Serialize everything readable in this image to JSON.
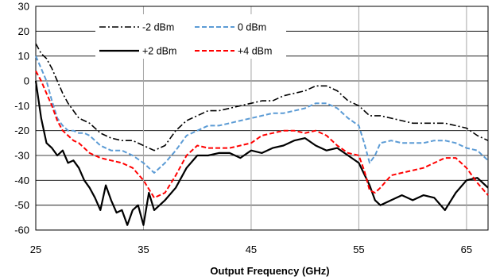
{
  "chart_data": {
    "type": "line",
    "title": "",
    "xlabel": "Output Frequency (GHz)",
    "ylabel": "",
    "xlim": [
      25,
      67
    ],
    "ylim": [
      -60,
      30
    ],
    "xticks": [
      25,
      35,
      45,
      55,
      65
    ],
    "yticks": [
      30,
      20,
      10,
      0,
      -10,
      -20,
      -30,
      -40,
      -50,
      -60
    ],
    "grid": true,
    "legend_position": "top",
    "series": [
      {
        "name": "-2 dBm",
        "color": "#000000",
        "dash": "dash-dot",
        "x": [
          25,
          25.5,
          26,
          26.5,
          27,
          27.5,
          28,
          28.5,
          29,
          29.5,
          30,
          31,
          32,
          33,
          34,
          35,
          36,
          37,
          38,
          39,
          40,
          41,
          42,
          43,
          44,
          45,
          46,
          47,
          48,
          49,
          50,
          51,
          52,
          53,
          54,
          55,
          56,
          57,
          58,
          59,
          60,
          61,
          62,
          63,
          64,
          65,
          66,
          67
        ],
        "y": [
          15,
          11,
          9,
          5,
          0,
          -5,
          -9,
          -12,
          -15,
          -16,
          -17,
          -21,
          -23,
          -24,
          -24,
          -26,
          -28,
          -26,
          -20,
          -16,
          -14,
          -12,
          -12,
          -11,
          -10,
          -9,
          -8,
          -8,
          -6,
          -5,
          -4,
          -2,
          -2,
          -4,
          -8,
          -10,
          -14,
          -14,
          -15,
          -16,
          -17,
          -17,
          -17,
          -17,
          -18,
          -19,
          -22,
          -24
        ]
      },
      {
        "name": "0 dBm",
        "color": "#5b9bd5",
        "dash": "dash",
        "x": [
          25,
          25.5,
          26,
          26.5,
          27,
          27.5,
          28,
          28.5,
          29,
          29.5,
          30,
          31,
          32,
          33,
          34,
          35,
          36,
          37,
          38,
          39,
          40,
          41,
          42,
          43,
          44,
          45,
          46,
          47,
          48,
          49,
          50,
          51,
          52,
          53,
          54,
          55,
          55.5,
          56,
          56.5,
          57,
          58,
          59,
          60,
          61,
          62,
          63,
          64,
          65,
          66,
          67
        ],
        "y": [
          10,
          5,
          0,
          -8,
          -15,
          -18,
          -20,
          -20,
          -21,
          -21,
          -22,
          -26,
          -28,
          -28,
          -30,
          -33,
          -37,
          -33,
          -28,
          -22,
          -20,
          -18,
          -18,
          -17,
          -16,
          -15,
          -14,
          -13,
          -13,
          -12,
          -11,
          -9,
          -9,
          -11,
          -15,
          -18,
          -25,
          -33,
          -30,
          -25,
          -24,
          -25,
          -25,
          -25,
          -24,
          -24,
          -25,
          -27,
          -28,
          -32
        ]
      },
      {
        "name": "+2 dBm",
        "color": "#000000",
        "dash": "solid",
        "x": [
          25,
          25.5,
          26,
          26.5,
          27,
          27.5,
          28,
          28.5,
          29,
          29.5,
          30,
          30.5,
          31,
          31.5,
          32,
          32.5,
          33,
          33.5,
          34,
          34.5,
          35,
          35.5,
          36,
          36.5,
          37,
          38,
          39,
          40,
          41,
          42,
          43,
          44,
          45,
          46,
          47,
          48,
          49,
          50,
          51,
          52,
          53,
          54,
          55,
          56,
          56.5,
          57,
          58,
          59,
          60,
          61,
          62,
          63,
          64,
          65,
          66,
          67
        ],
        "y": [
          0,
          -15,
          -25,
          -27,
          -30,
          -28,
          -33,
          -32,
          -35,
          -40,
          -43,
          -47,
          -52,
          -42,
          -48,
          -53,
          -52,
          -58,
          -52,
          -50,
          -58,
          -45,
          -52,
          -50,
          -48,
          -43,
          -35,
          -30,
          -30,
          -29,
          -29,
          -31,
          -28,
          -29,
          -27,
          -26,
          -24,
          -23,
          -26,
          -28,
          -27,
          -30,
          -33,
          -42,
          -48,
          -50,
          -48,
          -46,
          -48,
          -46,
          -47,
          -52,
          -45,
          -40,
          -39,
          -43
        ]
      },
      {
        "name": "+4 dBm",
        "color": "#ff0000",
        "dash": "dash",
        "x": [
          25,
          25.5,
          26,
          26.5,
          27,
          27.5,
          28,
          28.5,
          29,
          29.5,
          30,
          31,
          32,
          33,
          34,
          35,
          36,
          37,
          38,
          39,
          40,
          41,
          42,
          43,
          44,
          45,
          46,
          47,
          48,
          49,
          50,
          51,
          52,
          53,
          54,
          55,
          55.5,
          56,
          56.5,
          57,
          58,
          59,
          60,
          61,
          62,
          63,
          64,
          65,
          66,
          67
        ],
        "y": [
          4,
          0,
          -5,
          -10,
          -16,
          -20,
          -22,
          -24,
          -25,
          -27,
          -29,
          -31,
          -32,
          -33,
          -35,
          -40,
          -47,
          -45,
          -38,
          -30,
          -26,
          -27,
          -27,
          -27,
          -26,
          -25,
          -22,
          -21,
          -20,
          -20,
          -21,
          -20,
          -22,
          -26,
          -29,
          -30,
          -36,
          -44,
          -45,
          -43,
          -38,
          -37,
          -36,
          -35,
          -33,
          -31,
          -31,
          -35,
          -41,
          -46
        ]
      }
    ]
  }
}
